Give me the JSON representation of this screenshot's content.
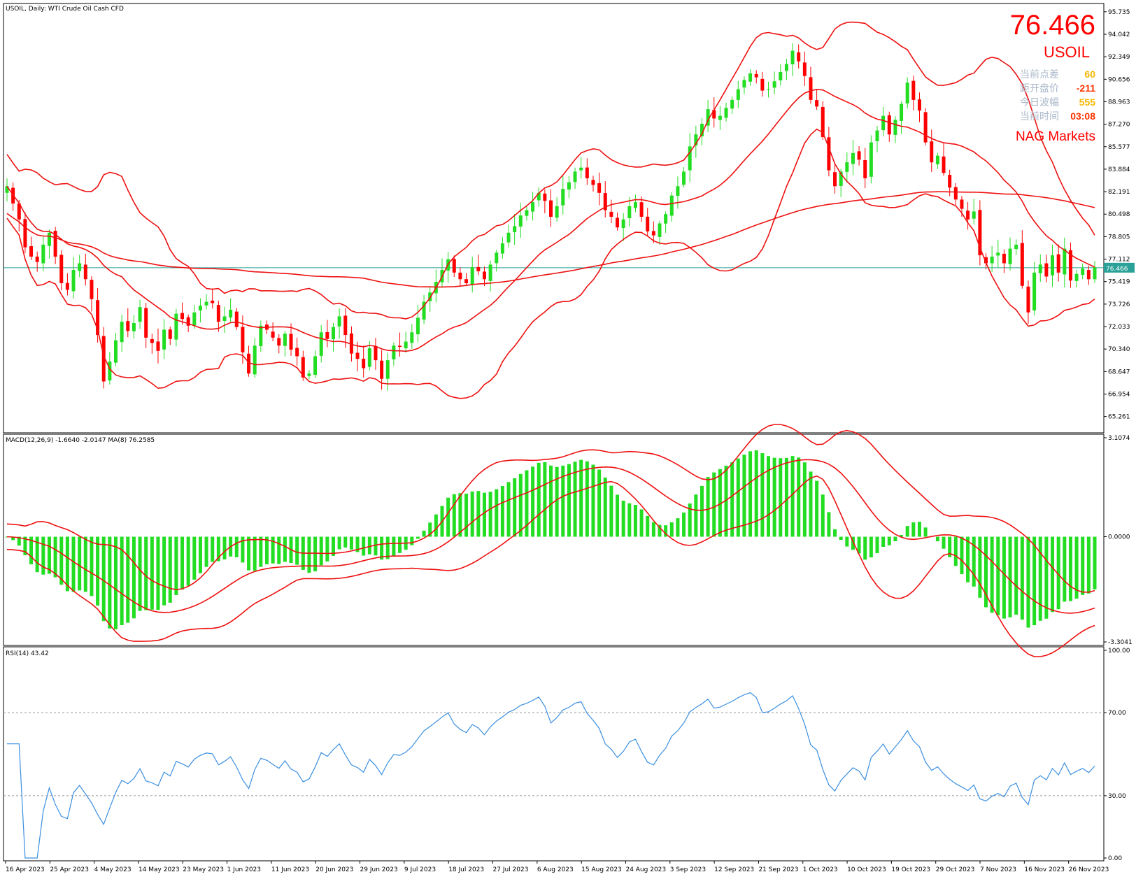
{
  "header": {
    "symbol_line": "USOIL, Daily:  WTI Crude Oil Cash CFD"
  },
  "overlay": {
    "price": "76.466",
    "symbol": "USOIL",
    "broker": "NAG Markets",
    "rows": [
      {
        "label": "当前点差",
        "value": "60",
        "color": "#f5b800"
      },
      {
        "label": "距开盘价",
        "value": "-211",
        "color": "#ff3300"
      },
      {
        "label": "今日波幅",
        "value": "555",
        "color": "#f5b800"
      },
      {
        "label": "当前时间",
        "value": "03:08",
        "color": "#ff3300"
      }
    ]
  },
  "macd": {
    "label": "MACD(12,26,9) -1.6640 -2.0147 MA(8) 76.2585"
  },
  "rsi": {
    "label": "RSI(14) 43.42"
  },
  "colors": {
    "bull": "#22dd22",
    "bear": "#ff0000",
    "band": "#ee1111",
    "rsi_line": "#3b8fe0",
    "price_line": "#2aa198",
    "price_tag_bg": "#2aa198"
  },
  "chart_data": [
    {
      "type": "candlestick",
      "title": "USOIL, Daily:  WTI Crude Oil Cash CFD",
      "ylim": [
        64.4,
        96.2
      ],
      "y_ticks": [
        "95.735",
        "94.042",
        "92.349",
        "90.656",
        "88.963",
        "87.270",
        "85.577",
        "83.884",
        "82.191",
        "80.498",
        "78.805",
        "77.112",
        "75.419",
        "73.726",
        "72.033",
        "70.340",
        "68.647",
        "66.954",
        "65.261"
      ],
      "current_price": 76.466,
      "x_tick_labels": [
        "16 Apr 2023",
        "25 Apr 2023",
        "4 May 2023",
        "14 May 2023",
        "23 May 2023",
        "1 Jun 2023",
        "11 Jun 2023",
        "20 Jun 2023",
        "29 Jun 2023",
        "9 Jul 2023",
        "18 Jul 2023",
        "27 Jul 2023",
        "6 Aug 2023",
        "15 Aug 2023",
        "24 Aug 2023",
        "3 Sep 2023",
        "12 Sep 2023",
        "21 Sep 2023",
        "1 Oct 2023",
        "10 Oct 2023",
        "19 Oct 2023",
        "29 Oct 2023",
        "7 Nov 2023",
        "16 Nov 2023",
        "26 Nov 2023"
      ],
      "closes": [
        82.6,
        81.3,
        80.1,
        78.0,
        77.3,
        76.9,
        78.2,
        79.1,
        77.3,
        75.3,
        74.8,
        76.3,
        76.8,
        75.6,
        74.1,
        71.4,
        67.9,
        69.4,
        71.0,
        72.4,
        71.7,
        72.3,
        73.5,
        71.2,
        70.8,
        70.2,
        71.8,
        71.1,
        73.0,
        72.6,
        72.1,
        73.1,
        73.6,
        73.9,
        73.8,
        72.4,
        72.8,
        73.3,
        72.0,
        70.1,
        68.5,
        70.6,
        72.1,
        71.8,
        71.2,
        70.6,
        71.5,
        70.3,
        69.8,
        68.2,
        68.5,
        69.8,
        71.6,
        71.1,
        72.0,
        72.8,
        71.4,
        70.0,
        69.6,
        68.9,
        70.4,
        69.5,
        68.1,
        69.5,
        70.6,
        70.5,
        70.9,
        71.6,
        72.7,
        73.9,
        74.6,
        75.4,
        76.3,
        77.1,
        76.1,
        75.6,
        75.3,
        76.5,
        76.2,
        75.6,
        76.7,
        77.6,
        78.3,
        79.1,
        79.6,
        80.4,
        80.8,
        81.4,
        82.1,
        81.5,
        80.3,
        81.1,
        82.4,
        82.9,
        83.7,
        84.0,
        83.2,
        82.7,
        82.1,
        80.8,
        80.3,
        79.5,
        80.1,
        81.1,
        81.4,
        80.3,
        79.2,
        78.9,
        79.8,
        80.5,
        81.9,
        82.6,
        83.7,
        85.6,
        86.5,
        87.3,
        88.4,
        87.7,
        87.9,
        88.5,
        89.1,
        89.9,
        90.6,
        91.1,
        90.8,
        89.8,
        89.9,
        90.5,
        91.2,
        91.8,
        92.8,
        92.0,
        90.9,
        89.1,
        88.6,
        86.3,
        83.8,
        82.6,
        83.7,
        84.4,
        85.1,
        84.6,
        83.2,
        85.9,
        86.8,
        87.9,
        86.5,
        87.6,
        88.8,
        90.4,
        89.1,
        88.3,
        85.9,
        84.4,
        84.9,
        83.6,
        82.5,
        81.6,
        80.9,
        80.1,
        80.7,
        77.4,
        76.8,
        77.3,
        77.6,
        76.8,
        77.9,
        78.2,
        75.1,
        73.1,
        76.1,
        76.7,
        75.8,
        77.4,
        76.1,
        77.9,
        75.5,
        76.0,
        76.4,
        75.6,
        76.5
      ],
      "bollinger_period": 20,
      "ma_period": 200
    },
    {
      "type": "bar",
      "title": "MACD(12,26,9) -1.6640 -2.0147 MA(8) 76.2585",
      "ylim": [
        -3.3041,
        3.1074
      ],
      "y_ticks": [
        "3.1074",
        "0.0000",
        "-3.3041"
      ]
    },
    {
      "type": "line",
      "title": "RSI(14) 43.42",
      "ylim": [
        0,
        100
      ],
      "y_ticks": [
        "100.00",
        "70.00",
        "30.00",
        "0.00"
      ],
      "levels": [
        70,
        30
      ]
    }
  ]
}
